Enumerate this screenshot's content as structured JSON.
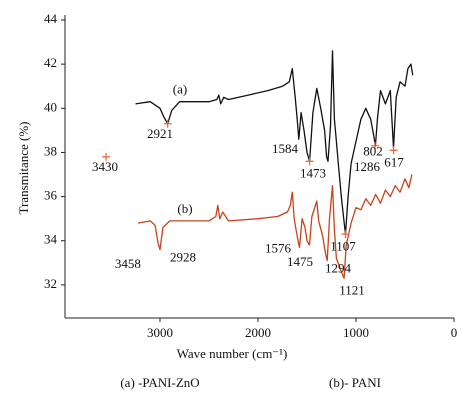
{
  "chart_data": {
    "type": "line",
    "x_label": "Wave number (cm⁻¹)",
    "y_label": "Transmitance (%)",
    "xlim": [
      3969,
      0
    ],
    "ylim": [
      30.5,
      44
    ],
    "xticks": [
      3000,
      2000,
      1000,
      0
    ],
    "yticks": [
      32,
      34,
      36,
      38,
      40,
      42,
      44
    ],
    "series": [
      {
        "name": "(a) -PANI-ZnO",
        "color": "#111111",
        "x": [
          3250,
          3100,
          3000,
          2960,
          2921,
          2880,
          2800,
          2500,
          2420,
          2400,
          2380,
          2350,
          2300,
          2100,
          1900,
          1750,
          1680,
          1650,
          1620,
          1600,
          1584,
          1560,
          1530,
          1500,
          1473,
          1440,
          1400,
          1360,
          1320,
          1300,
          1286,
          1260,
          1240,
          1220,
          1200,
          1180,
          1150,
          1120,
          1107,
          1080,
          1050,
          1000,
          950,
          900,
          850,
          820,
          802,
          780,
          750,
          700,
          650,
          617,
          590,
          550,
          500,
          470,
          440,
          420
        ],
        "values": [
          40.2,
          40.3,
          40.0,
          39.6,
          39.3,
          39.9,
          40.3,
          40.3,
          40.4,
          40.6,
          40.2,
          40.5,
          40.4,
          40.6,
          40.8,
          41.0,
          41.2,
          41.8,
          40.5,
          39.5,
          38.6,
          39.8,
          39.0,
          38.0,
          37.6,
          39.8,
          40.9,
          40.0,
          39.0,
          37.8,
          37.6,
          39.2,
          42.6,
          39.5,
          38.5,
          37.5,
          36.0,
          34.8,
          34.3,
          36.0,
          37.5,
          38.5,
          39.5,
          40.0,
          39.5,
          38.8,
          38.3,
          39.6,
          40.8,
          40.2,
          40.8,
          38.2,
          40.5,
          41.2,
          41.0,
          41.8,
          42.0,
          41.5
        ]
      },
      {
        "name": "(b)- PANI",
        "color": "#c8431c",
        "x": [
          3224,
          3100,
          3050,
          3020,
          3000,
          2970,
          2900,
          2500,
          2430,
          2410,
          2390,
          2360,
          2300,
          2000,
          1800,
          1700,
          1670,
          1650,
          1630,
          1600,
          1576,
          1550,
          1520,
          1500,
          1475,
          1450,
          1400,
          1380,
          1340,
          1310,
          1294,
          1270,
          1240,
          1220,
          1200,
          1150,
          1121,
          1100,
          1050,
          1000,
          950,
          900,
          850,
          800,
          750,
          700,
          650,
          600,
          550,
          500,
          460,
          430
        ],
        "values": [
          34.8,
          34.9,
          34.7,
          33.9,
          33.6,
          34.6,
          34.9,
          34.9,
          35.1,
          35.6,
          35.0,
          35.3,
          34.9,
          35.0,
          35.1,
          35.3,
          35.6,
          36.2,
          35.0,
          34.2,
          33.7,
          35.0,
          34.6,
          34.0,
          33.8,
          35.1,
          35.8,
          34.9,
          34.2,
          33.4,
          33.1,
          35.0,
          36.5,
          34.5,
          33.2,
          32.6,
          32.3,
          33.8,
          34.8,
          35.5,
          35.4,
          35.9,
          35.6,
          36.1,
          35.7,
          36.3,
          36.0,
          36.5,
          36.2,
          36.8,
          36.4,
          37.0
        ]
      }
    ],
    "annotations": [
      {
        "text": "(a)",
        "x": 2796,
        "y": 40.8
      },
      {
        "text": "(b)",
        "x": 2745,
        "y": 35.4
      },
      {
        "text": "2921",
        "x": 3000,
        "y": 38.8
      },
      {
        "text": "3430",
        "x": 3561,
        "y": 37.3
      },
      {
        "text": "1584",
        "x": 1724,
        "y": 38.1
      },
      {
        "text": "1473",
        "x": 1439,
        "y": 37.0
      },
      {
        "text": "1286",
        "x": 888,
        "y": 37.3
      },
      {
        "text": "802",
        "x": 827,
        "y": 38.0
      },
      {
        "text": "617",
        "x": 612,
        "y": 37.5
      },
      {
        "text": "3458",
        "x": 3327,
        "y": 32.9
      },
      {
        "text": "2928",
        "x": 2765,
        "y": 33.2
      },
      {
        "text": "1576",
        "x": 1796,
        "y": 33.6
      },
      {
        "text": "1475",
        "x": 1571,
        "y": 33.0
      },
      {
        "text": "1107",
        "x": 1133,
        "y": 33.7
      },
      {
        "text": "1294",
        "x": 1184,
        "y": 32.7
      },
      {
        "text": "1121",
        "x": 1041,
        "y": 31.7
      }
    ],
    "markers": {
      "color": "#e8632a",
      "points": [
        {
          "x": 2921,
          "y": 39.3
        },
        {
          "x": 3550,
          "y": 37.8
        },
        {
          "x": 1473,
          "y": 37.6
        },
        {
          "x": 806,
          "y": 38.3
        },
        {
          "x": 617,
          "y": 38.1
        },
        {
          "x": 1107,
          "y": 34.3
        }
      ]
    }
  }
}
